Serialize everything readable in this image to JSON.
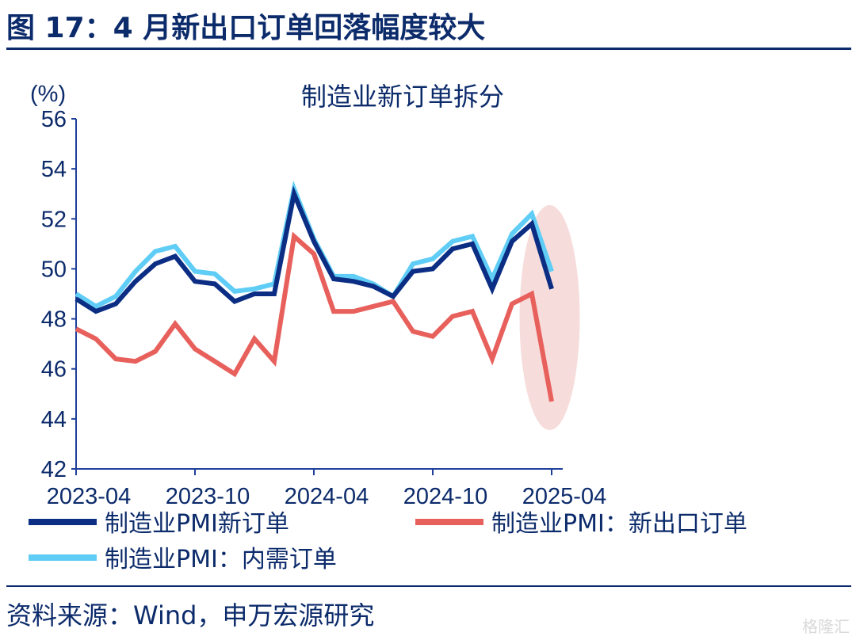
{
  "header": {
    "figure_title": "图 17：4 月新出口订单回落幅度较大"
  },
  "footer": {
    "source": "资料来源：Wind，申万宏源研究",
    "watermark": "格隆汇"
  },
  "chart_data": {
    "type": "line",
    "title": "制造业新订单拆分",
    "ylabel": "(%)",
    "ylim": [
      42,
      56
    ],
    "yticks": [
      42,
      44,
      46,
      48,
      50,
      52,
      54,
      56
    ],
    "x": [
      "2023-04",
      "2023-05",
      "2023-06",
      "2023-07",
      "2023-08",
      "2023-09",
      "2023-10",
      "2023-11",
      "2023-12",
      "2024-01",
      "2024-02",
      "2024-03",
      "2024-04",
      "2024-05",
      "2024-06",
      "2024-07",
      "2024-08",
      "2024-09",
      "2024-10",
      "2024-11",
      "2024-12",
      "2025-01",
      "2025-02",
      "2025-03",
      "2025-04"
    ],
    "xtick_labels": [
      "2023-04",
      "2023-10",
      "2024-04",
      "2024-10",
      "2025-04"
    ],
    "legend_placement": "bottom",
    "series": [
      {
        "name": "制造业PMI新订单",
        "color": "#0b2d83",
        "values": [
          48.8,
          48.3,
          48.6,
          49.5,
          50.2,
          50.5,
          49.5,
          49.4,
          48.7,
          49.0,
          49.0,
          53.0,
          51.1,
          49.6,
          49.5,
          49.3,
          48.9,
          49.9,
          50.0,
          50.8,
          51.0,
          49.2,
          51.1,
          51.8,
          49.2
        ]
      },
      {
        "name": "制造业PMI：新出口订单",
        "color": "#e8605c",
        "values": [
          47.6,
          47.2,
          46.4,
          46.3,
          46.7,
          47.8,
          46.8,
          46.3,
          45.8,
          47.2,
          46.3,
          51.3,
          50.6,
          48.3,
          48.3,
          48.5,
          48.7,
          47.5,
          47.3,
          48.1,
          48.3,
          46.4,
          48.6,
          49.0,
          44.7
        ]
      },
      {
        "name": "制造业PMI：内需订单",
        "color": "#5fcdf5",
        "values": [
          49.0,
          48.5,
          48.9,
          49.9,
          50.7,
          50.9,
          49.9,
          49.8,
          49.1,
          49.2,
          49.4,
          53.2,
          51.2,
          49.7,
          49.7,
          49.4,
          48.9,
          50.2,
          50.4,
          51.1,
          51.3,
          49.6,
          51.4,
          52.2,
          49.9
        ]
      }
    ],
    "highlight": {
      "type": "ellipse",
      "period": [
        "2025-03",
        "2025-04"
      ],
      "color": "#f3d0cf"
    }
  }
}
